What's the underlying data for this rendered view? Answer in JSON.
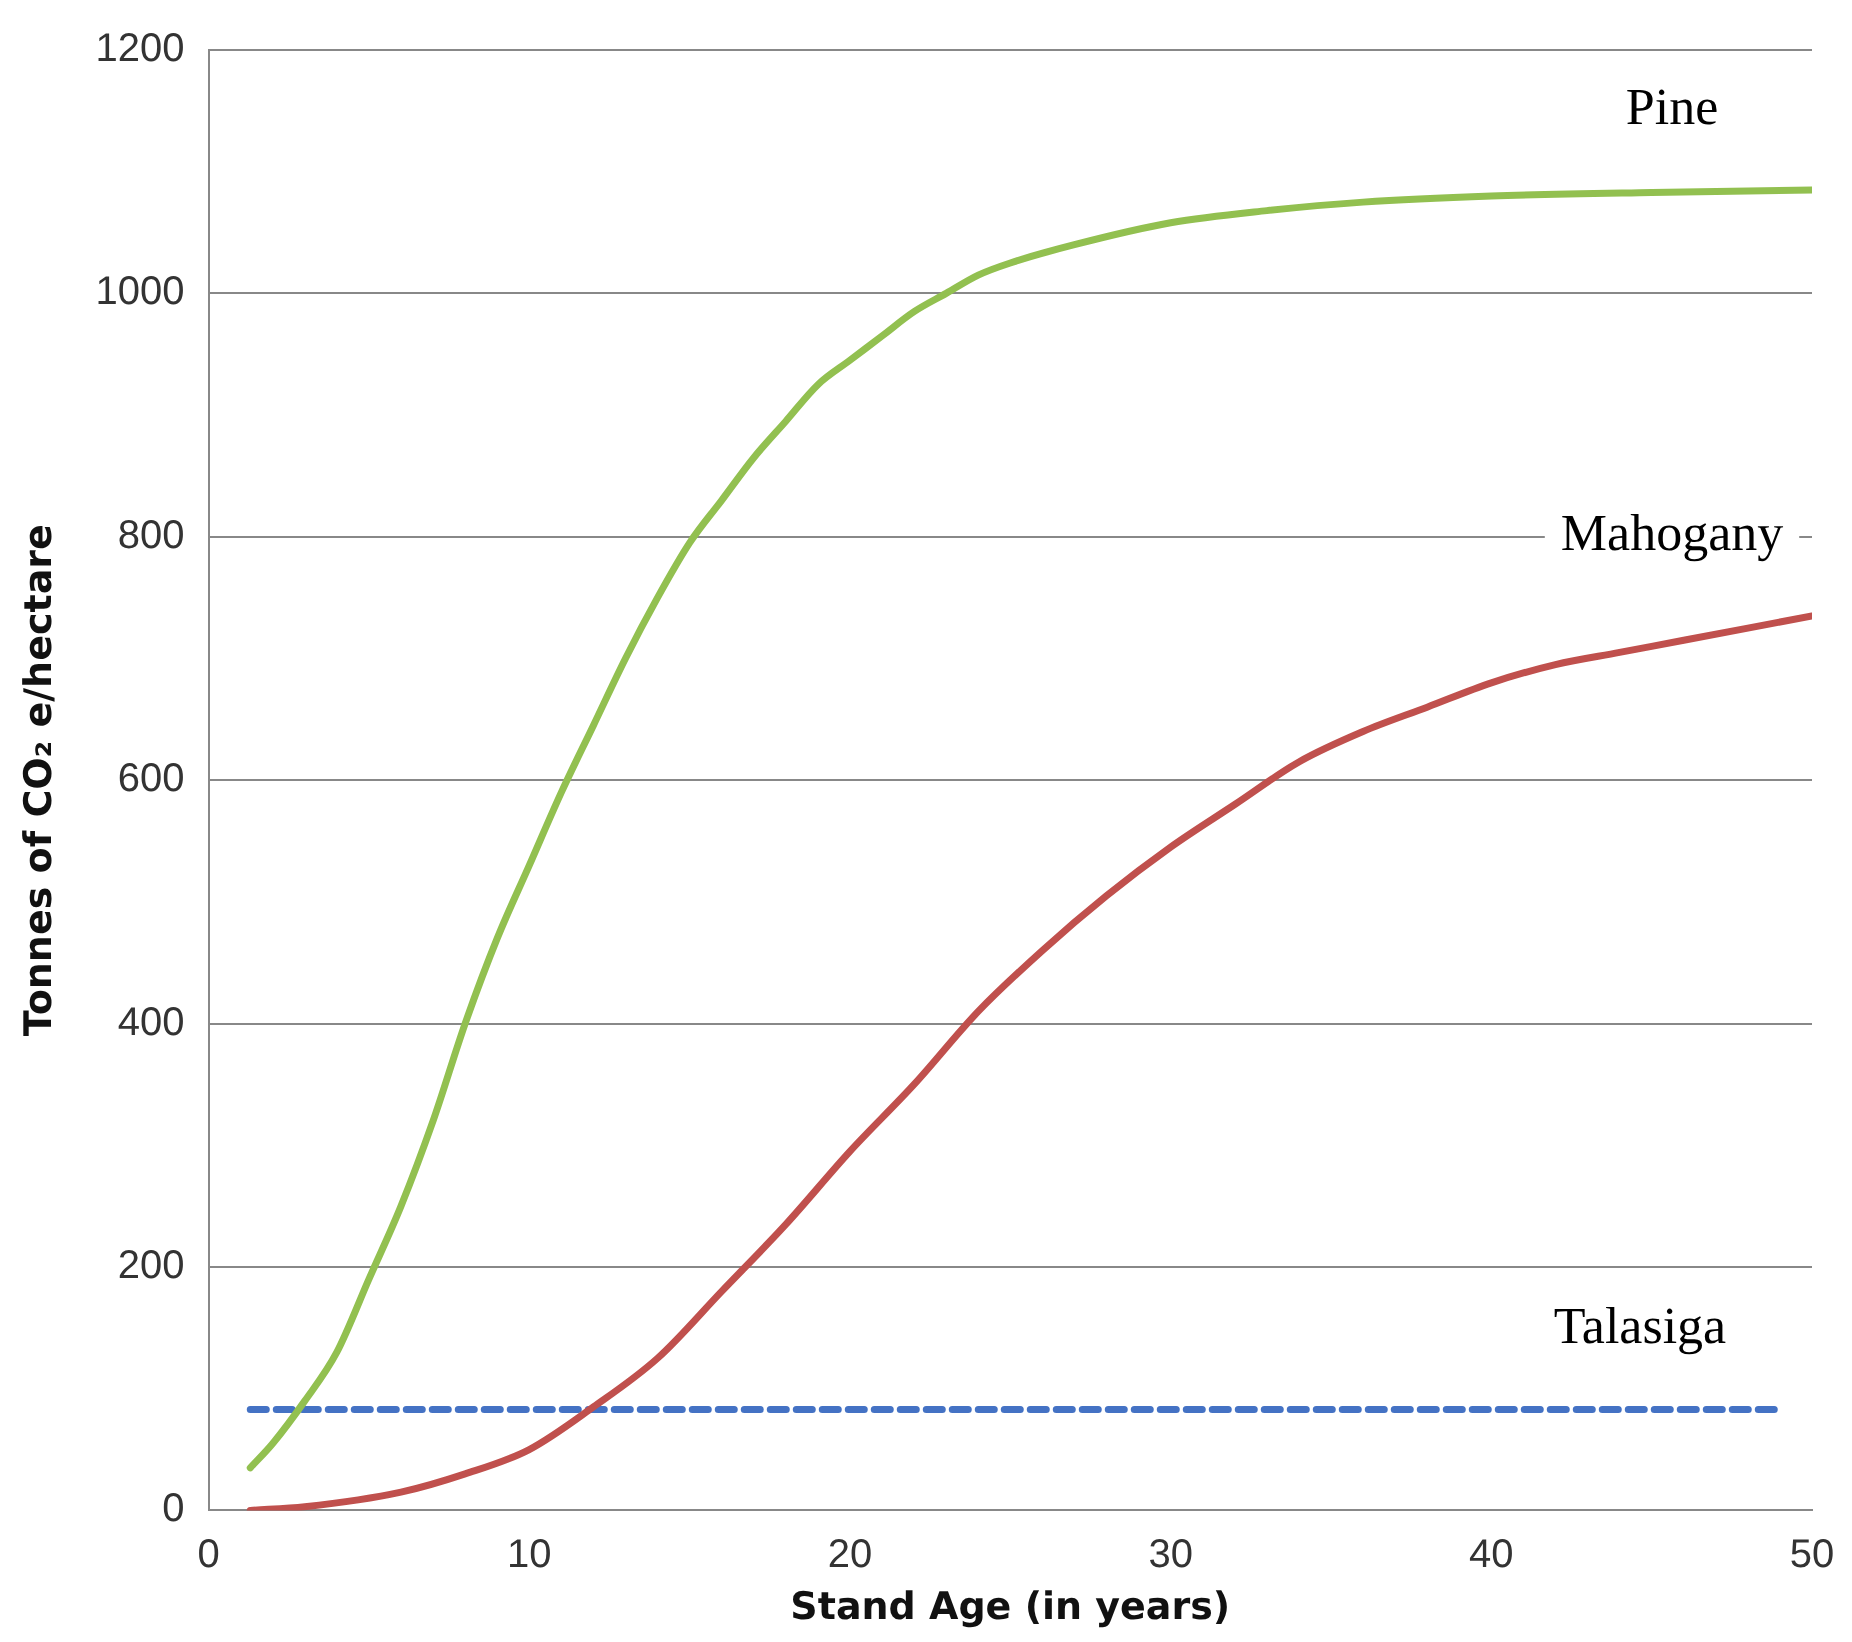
{
  "chart_data": {
    "type": "line",
    "xlabel": "Stand Age (in years)",
    "ylabel": "Tonnes of CO₂ e/hectare",
    "xlim": [
      0,
      50
    ],
    "xticks": [
      0,
      10,
      20,
      30,
      40,
      50
    ],
    "ylim": [
      0,
      1200
    ],
    "yticks": [
      0,
      200,
      400,
      600,
      800,
      1000,
      1200
    ],
    "grid": "y",
    "legend": false,
    "marker": "none",
    "series": [
      {
        "name": "Pine",
        "color": "#92c050",
        "line_style": "solid",
        "x": [
          1.3,
          2,
          3,
          4,
          5,
          6,
          7,
          8,
          9,
          10,
          11,
          12,
          13,
          14,
          15,
          16,
          17,
          18,
          19,
          20,
          21,
          22,
          23,
          24,
          25,
          27,
          30,
          33,
          36,
          40,
          45,
          50
        ],
        "values": [
          35,
          55,
          90,
          130,
          190,
          250,
          320,
          400,
          470,
          530,
          590,
          645,
          700,
          750,
          795,
          830,
          865,
          895,
          925,
          945,
          965,
          985,
          1000,
          1015,
          1025,
          1040,
          1058,
          1068,
          1075,
          1080,
          1083,
          1085
        ]
      },
      {
        "name": "Mahogany",
        "color": "#c0504d",
        "line_style": "solid",
        "x": [
          1.3,
          3,
          6,
          8,
          10,
          12,
          14,
          16,
          18,
          20,
          22,
          24,
          26,
          28,
          30,
          32,
          34,
          36,
          38,
          40,
          42,
          44,
          46,
          48,
          50
        ],
        "values": [
          0,
          3,
          15,
          30,
          50,
          85,
          125,
          180,
          235,
          295,
          350,
          410,
          460,
          505,
          545,
          580,
          615,
          640,
          660,
          680,
          695,
          705,
          715,
          725,
          735
        ]
      },
      {
        "name": "Talasiga",
        "color": "#4472c4",
        "line_style": "dashed",
        "x": [
          1.3,
          49
        ],
        "values": [
          83,
          83
        ]
      }
    ]
  }
}
